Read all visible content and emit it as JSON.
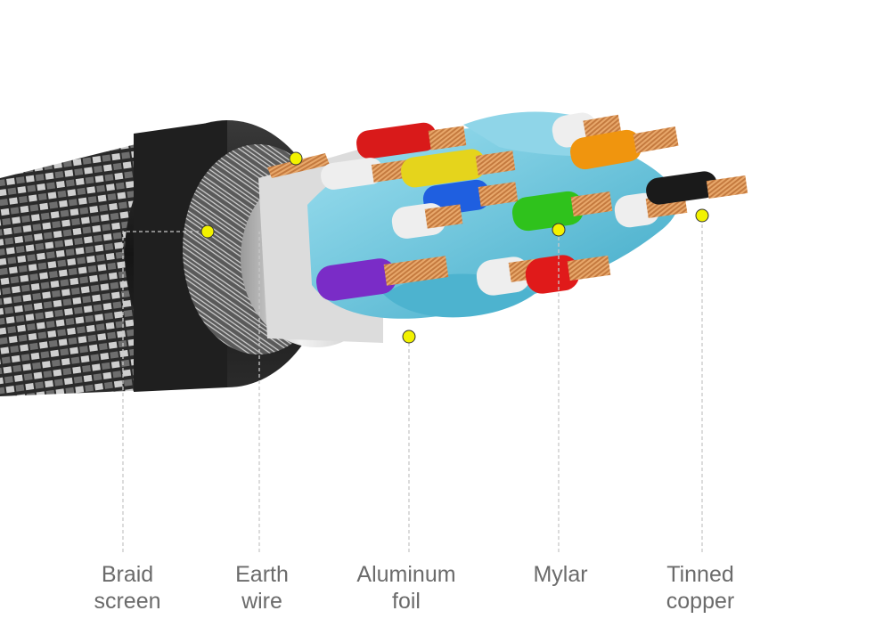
{
  "diagram": {
    "labels": [
      {
        "id": "braid",
        "line1": "Braid",
        "line2": "screen"
      },
      {
        "id": "earth",
        "line1": "Earth",
        "line2": "wire"
      },
      {
        "id": "foil",
        "line1": "Aluminum",
        "line2": "foil"
      },
      {
        "id": "mylar",
        "line1": "Mylar",
        "line2": ""
      },
      {
        "id": "copper",
        "line1": "Tinned",
        "line2": "copper"
      }
    ],
    "colors": {
      "marker": "#f2f200",
      "leader_line": "#c8c8c8",
      "label_text": "#6b6b6b",
      "jacket": "#1b1b1b",
      "braid": "#9a9a9a",
      "foil": "#d8d8d8",
      "mylar": "#6fc4dc",
      "copper": "#c8844a"
    }
  }
}
